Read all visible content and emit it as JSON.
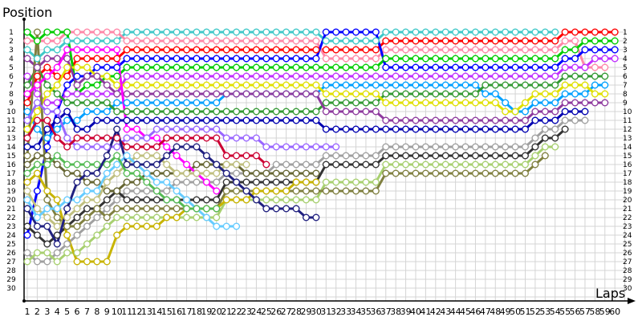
{
  "chart_data": {
    "type": "line",
    "ylabel": "Position",
    "xlabel": "Laps",
    "xlim": [
      1,
      60
    ],
    "ylim": [
      1,
      30
    ],
    "y_inverted": true,
    "grid": true,
    "legend": "none",
    "series": [
      {
        "color": "#40c8c8",
        "values": [
          3,
          4,
          3,
          3,
          2,
          2,
          2,
          2,
          2,
          2,
          1,
          1,
          1,
          1,
          1,
          1,
          1,
          1,
          1,
          1,
          1,
          1,
          1,
          1,
          1,
          1,
          1,
          1,
          1,
          1,
          2,
          2,
          2,
          2,
          2,
          2,
          1,
          1,
          1,
          1,
          1,
          1,
          1,
          1,
          1,
          1,
          1,
          1,
          1,
          1,
          1,
          1,
          1,
          1
        ]
      },
      {
        "color": "#ff0000",
        "values": [
          9,
          6,
          5,
          6,
          6,
          4,
          4,
          4,
          4,
          4,
          3,
          3,
          3,
          3,
          3,
          3,
          3,
          3,
          3,
          3,
          3,
          3,
          3,
          3,
          3,
          3,
          3,
          3,
          3,
          3,
          3,
          3,
          3,
          3,
          3,
          3,
          2,
          2,
          2,
          2,
          2,
          2,
          2,
          2,
          2,
          2,
          2,
          2,
          2,
          2,
          2,
          2,
          2,
          2,
          1,
          1,
          1,
          1,
          1,
          1
        ]
      },
      {
        "color": "#ff88a8",
        "values": [
          2,
          2,
          2,
          2,
          1,
          1,
          1,
          1,
          1,
          1,
          2,
          2,
          2,
          2,
          2,
          2,
          2,
          2,
          2,
          2,
          2,
          2,
          2,
          2,
          2,
          2,
          2,
          2,
          2,
          2,
          4,
          4,
          4,
          4,
          4,
          4,
          3,
          3,
          3,
          3,
          3,
          3,
          3,
          3,
          3,
          3,
          3,
          3,
          3,
          3,
          3,
          3,
          3,
          3,
          2,
          2,
          5,
          5,
          5
        ]
      },
      {
        "color": "#00cc00",
        "values": [
          1,
          2,
          1,
          1,
          1,
          8,
          7,
          7,
          6,
          6,
          5,
          5,
          5,
          5,
          5,
          5,
          5,
          5,
          5,
          5,
          5,
          5,
          5,
          5,
          5,
          5,
          5,
          5,
          5,
          5,
          5,
          5,
          5,
          5,
          5,
          5,
          4,
          4,
          4,
          4,
          4,
          4,
          4,
          4,
          4,
          4,
          4,
          4,
          4,
          4,
          4,
          4,
          4,
          4,
          3,
          3,
          2,
          2,
          2,
          2
        ]
      },
      {
        "color": "#0000ff",
        "values": [
          24,
          19,
          14,
          10,
          7,
          6,
          6,
          5,
          5,
          5,
          4,
          4,
          4,
          4,
          4,
          4,
          4,
          4,
          4,
          4,
          4,
          4,
          4,
          4,
          4,
          4,
          4,
          4,
          4,
          4,
          1,
          1,
          1,
          1,
          1,
          1,
          5,
          5,
          5,
          5,
          5,
          5,
          5,
          5,
          5,
          5,
          5,
          5,
          5,
          5,
          5,
          5,
          5,
          5,
          4,
          4,
          3,
          3,
          3,
          3
        ]
      },
      {
        "color": "#c030ff",
        "values": [
          6,
          8,
          9,
          9,
          8,
          8,
          8,
          8,
          8,
          8,
          6,
          6,
          6,
          6,
          6,
          6,
          6,
          6,
          6,
          6,
          6,
          6,
          6,
          6,
          6,
          6,
          6,
          6,
          6,
          6,
          6,
          6,
          6,
          6,
          6,
          6,
          6,
          6,
          6,
          6,
          6,
          6,
          6,
          6,
          6,
          6,
          6,
          6,
          6,
          6,
          6,
          6,
          6,
          6,
          5,
          5,
          5,
          4,
          4,
          4
        ]
      },
      {
        "color": "#00a0ff",
        "values": [
          10,
          12,
          13,
          12,
          11,
          11,
          10,
          10,
          10,
          9,
          9,
          9,
          9,
          9,
          9,
          9,
          9,
          9,
          9,
          9,
          8,
          8,
          8,
          8,
          8,
          8,
          8,
          8,
          8,
          8,
          7,
          7,
          7,
          7,
          7,
          7,
          7,
          7,
          7,
          7,
          7,
          7,
          7,
          7,
          7,
          7,
          8,
          8,
          9,
          10,
          10,
          9,
          9,
          9,
          8,
          8,
          8,
          7,
          7
        ]
      },
      {
        "color": "#339933",
        "values": [
          7,
          5,
          7,
          8,
          9,
          9,
          9,
          9,
          9,
          10,
          10,
          10,
          10,
          10,
          10,
          10,
          10,
          10,
          10,
          10,
          10,
          10,
          10,
          10,
          10,
          10,
          10,
          10,
          10,
          10,
          9,
          9,
          9,
          9,
          9,
          9,
          8,
          8,
          8,
          8,
          8,
          8,
          8,
          8,
          8,
          8,
          7,
          7,
          7,
          7,
          7,
          7,
          7,
          7,
          6,
          6,
          6,
          6,
          6
        ]
      },
      {
        "color": "#e0e000",
        "values": [
          12,
          10,
          8,
          7,
          5,
          5,
          5,
          6,
          6,
          7,
          7,
          7,
          7,
          7,
          7,
          7,
          7,
          7,
          7,
          7,
          7,
          7,
          7,
          7,
          7,
          7,
          7,
          7,
          7,
          7,
          8,
          8,
          8,
          8,
          8,
          8,
          9,
          9,
          9,
          9,
          9,
          9,
          9,
          9,
          9,
          9,
          9,
          9,
          10,
          10,
          9,
          8,
          8,
          8,
          7,
          7,
          7,
          8,
          8
        ]
      },
      {
        "color": "#8e3a9e",
        "values": [
          4,
          5,
          4,
          4,
          4,
          7,
          6,
          6,
          7,
          8,
          8,
          8,
          8,
          8,
          8,
          8,
          8,
          8,
          8,
          8,
          8,
          8,
          8,
          8,
          8,
          8,
          8,
          8,
          8,
          8,
          10,
          10,
          10,
          10,
          10,
          10,
          11,
          11,
          11,
          11,
          11,
          11,
          11,
          11,
          11,
          11,
          11,
          11,
          11,
          11,
          11,
          10,
          10,
          10,
          9,
          9,
          9,
          9,
          9
        ]
      },
      {
        "color": "#0000b0",
        "values": [
          14,
          14,
          12,
          11,
          10,
          12,
          12,
          11,
          11,
          11,
          11,
          11,
          11,
          11,
          11,
          11,
          11,
          11,
          11,
          11,
          11,
          11,
          11,
          11,
          11,
          11,
          11,
          11,
          11,
          11,
          12,
          12,
          12,
          12,
          12,
          12,
          12,
          12,
          12,
          12,
          12,
          12,
          12,
          12,
          12,
          12,
          12,
          12,
          12,
          12,
          12,
          11,
          11,
          11,
          10,
          10,
          10
        ]
      },
      {
        "color": "#a0a0a0",
        "values": [
          26,
          27,
          27,
          26,
          25,
          24,
          23,
          22,
          21,
          20,
          19,
          19,
          19,
          19,
          19,
          18,
          18,
          18,
          18,
          18,
          17,
          17,
          17,
          17,
          17,
          16,
          16,
          16,
          16,
          16,
          15,
          15,
          15,
          15,
          15,
          15,
          14,
          14,
          14,
          14,
          14,
          14,
          14,
          14,
          14,
          14,
          14,
          14,
          14,
          14,
          14,
          13,
          12,
          12,
          11,
          11,
          11
        ]
      },
      {
        "color": "#333333",
        "values": [
          23,
          24,
          25,
          24,
          23,
          22,
          21,
          21,
          20,
          19,
          20,
          20,
          20,
          20,
          20,
          20,
          20,
          20,
          20,
          20,
          18,
          18,
          18,
          18,
          18,
          18,
          18,
          18,
          18,
          18,
          16,
          16,
          16,
          16,
          16,
          16,
          15,
          15,
          15,
          15,
          15,
          15,
          15,
          15,
          15,
          15,
          15,
          15,
          15,
          15,
          15,
          14,
          13,
          13,
          12
        ]
      },
      {
        "color": "#a8d070",
        "values": [
          27,
          26,
          26,
          27,
          26,
          26,
          25,
          24,
          23,
          22,
          22,
          22,
          22,
          22,
          22,
          22,
          22,
          22,
          22,
          22,
          20,
          20,
          20,
          20,
          20,
          20,
          20,
          20,
          20,
          20,
          18,
          18,
          18,
          18,
          18,
          18,
          16,
          16,
          16,
          16,
          16,
          16,
          16,
          16,
          16,
          16,
          16,
          16,
          16,
          16,
          16,
          15,
          14,
          14
        ]
      },
      {
        "color": "#808040",
        "values": [
          15,
          1,
          20,
          22,
          23,
          23,
          22,
          21,
          22,
          21,
          21,
          21,
          21,
          21,
          21,
          21,
          21,
          21,
          21,
          21,
          19,
          19,
          19,
          19,
          19,
          19,
          19,
          19,
          19,
          19,
          19,
          19,
          19,
          19,
          19,
          19,
          17,
          17,
          17,
          17,
          17,
          17,
          17,
          17,
          17,
          17,
          17,
          17,
          17,
          17,
          17,
          16,
          15
        ]
      },
      {
        "color": "#c8b400",
        "values": [
          18,
          17,
          19,
          20,
          24,
          27,
          27,
          27,
          27,
          24,
          23,
          23,
          23,
          23,
          22,
          22,
          21,
          21,
          21,
          21,
          20,
          20,
          20,
          19,
          19,
          19,
          19,
          18,
          18,
          18
        ]
      },
      {
        "color": "#666633",
        "values": [
          16,
          15,
          15,
          16,
          17,
          17,
          18,
          18,
          19,
          19,
          18,
          18,
          17,
          17,
          17,
          17,
          17,
          16,
          16,
          16,
          16,
          16,
          17,
          17,
          17,
          17,
          17,
          17,
          17,
          17
        ]
      },
      {
        "color": "#ff00ff",
        "values": [
          8,
          7,
          6,
          5,
          3,
          3,
          3,
          3,
          3,
          3,
          12,
          12,
          13,
          13,
          14,
          15,
          16,
          17,
          18,
          19
        ]
      },
      {
        "color": "#c0c080",
        "values": [
          19,
          21,
          22,
          23,
          22,
          21,
          20,
          20,
          18,
          17,
          16,
          15,
          15,
          15,
          16,
          17,
          17,
          17,
          17,
          17,
          16,
          16,
          16
        ]
      },
      {
        "color": "#66ccff",
        "values": [
          20,
          22,
          21,
          21,
          20,
          20,
          19,
          19,
          17,
          16,
          15,
          16,
          17,
          18,
          18,
          19,
          20,
          21,
          22,
          23,
          23,
          23
        ]
      },
      {
        "color": "#9966ff",
        "values": [
          11,
          9,
          10,
          10,
          13,
          14,
          14,
          14,
          14,
          14,
          13,
          13,
          13,
          12,
          12,
          12,
          12,
          12,
          12,
          12,
          13,
          13,
          13,
          13,
          14,
          14,
          14,
          14,
          14,
          14,
          14,
          14
        ]
      },
      {
        "color": "#cc0033",
        "values": [
          13,
          11,
          11,
          13,
          14,
          13,
          13,
          13,
          13,
          13,
          14,
          14,
          14,
          14,
          13,
          13,
          13,
          13,
          13,
          13,
          15,
          15,
          15,
          15,
          16
        ]
      },
      {
        "color": "#55bb55",
        "values": [
          17,
          16,
          16,
          15,
          16,
          16,
          16,
          16,
          16,
          15,
          17,
          17,
          18,
          19,
          20,
          20,
          21,
          21,
          21,
          21
        ]
      },
      {
        "color": "#202080",
        "values": [
          21,
          23,
          23,
          25,
          21,
          18,
          17,
          17,
          15,
          12,
          16,
          16,
          16,
          16,
          15,
          14,
          14,
          14,
          15,
          16,
          17,
          18,
          19,
          20,
          21,
          21,
          21,
          21,
          22,
          22
        ]
      }
    ]
  }
}
